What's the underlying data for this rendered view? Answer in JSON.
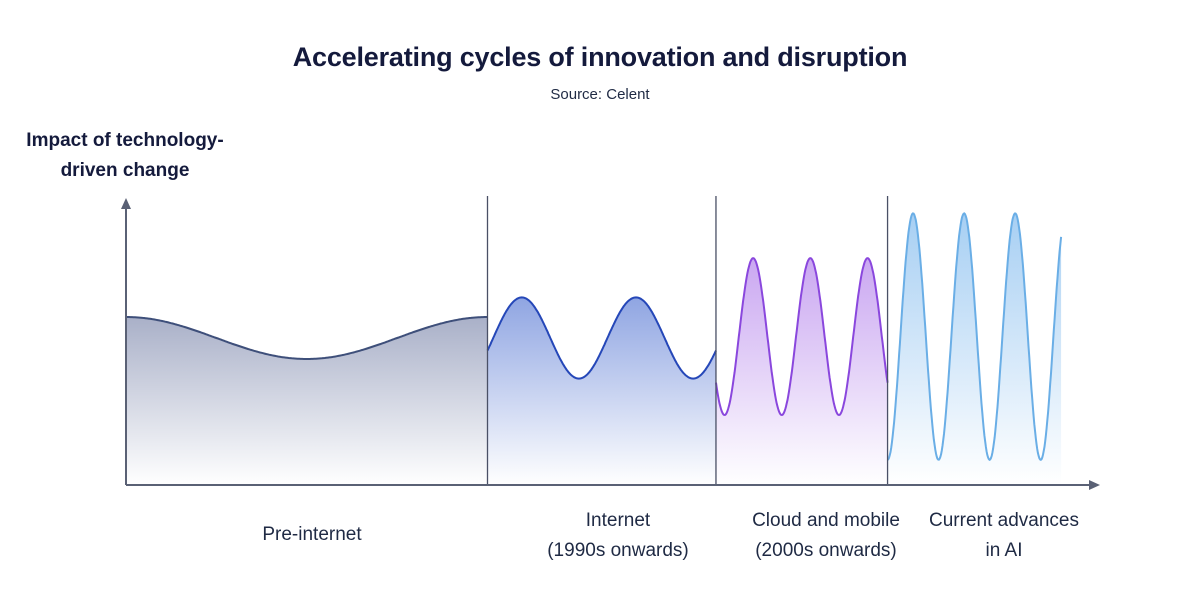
{
  "chart_data": {
    "type": "area",
    "title": "Accelerating cycles of innovation and disruption",
    "subtitle": "Source: Celent",
    "ylabel": "Impact of technology-driven change",
    "ylabel_lines": [
      "Impact of technology-",
      "driven change"
    ],
    "xlabel": "",
    "ylim": [
      0,
      10
    ],
    "grid": false,
    "legend": "none",
    "series": [
      {
        "name": "Pre-internet",
        "label_lines": [
          "Pre-internet"
        ],
        "x_range": [
          0,
          37.5
        ],
        "min": 4.5,
        "max": 6.0,
        "cycles": 1.0,
        "phase": 0.5,
        "color": "#3e4f7a",
        "fill_top": "#a9b0c8",
        "fill_bottom": "#ffffff"
      },
      {
        "name": "Internet (1990s onwards)",
        "label_lines": [
          "Internet",
          "(1990s onwards)"
        ],
        "x_range": [
          37.5,
          61.2
        ],
        "min": 3.8,
        "max": 6.7,
        "cycles": 2.0,
        "phase": 0.2,
        "color": "#2547b8",
        "fill_top": "#8fa5e2",
        "fill_bottom": "#ffffff"
      },
      {
        "name": "Cloud and mobile (2000s onwards)",
        "label_lines": [
          "Cloud and mobile",
          "(2000s onwards)"
        ],
        "x_range": [
          61.2,
          79.0
        ],
        "min": 2.5,
        "max": 8.1,
        "cycles": 3.0,
        "phase": 0.85,
        "color": "#8a47dd",
        "fill_top": "#caa7f1",
        "fill_bottom": "#ffffff"
      },
      {
        "name": "Current advances in AI",
        "label_lines": [
          "Current advances",
          "in AI"
        ],
        "x_range": [
          79.0,
          97.0
        ],
        "min": 0.9,
        "max": 9.7,
        "cycles": 3.4,
        "phase": 0.0,
        "color": "#6aaee6",
        "fill_top": "#a7cff3",
        "fill_bottom": "#ffffff"
      }
    ]
  }
}
